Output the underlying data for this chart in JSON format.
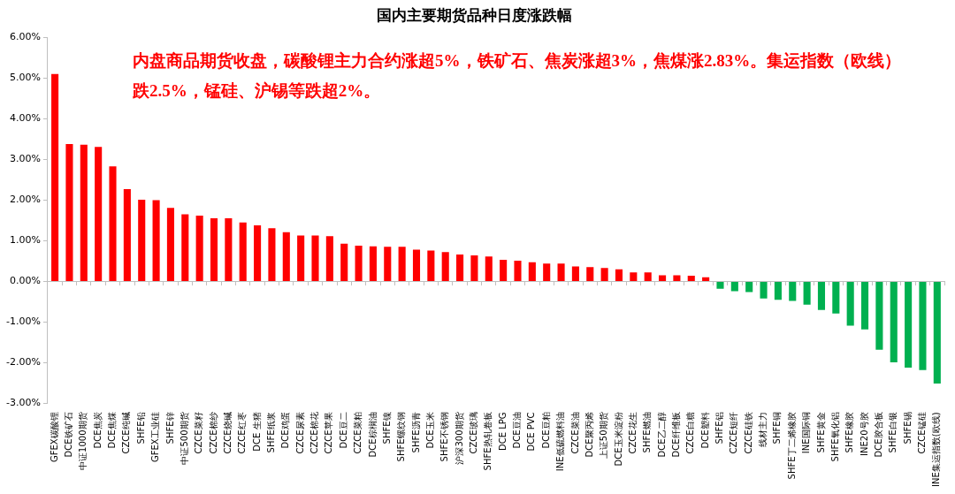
{
  "chart_data": {
    "type": "bar",
    "title": "国内主要期货品种日度涨跌幅",
    "annotations": [
      "内盘商品期货收盘，碳酸锂主力合约涨超5%，铁矿石、焦炭涨超3%，焦煤涨2.83%。集运指数（欧线）跌2.5%，锰硅、沪锡等跌超2%。"
    ],
    "categories": [
      "GFEX碳酸锂",
      "DCE铁矿石",
      "中证1000期货",
      "DCE焦炭",
      "DCE焦煤",
      "CZCE纯碱",
      "SHFE铅",
      "GFEX工业硅",
      "SHFE锌",
      "中证500期货",
      "CZCE菜籽",
      "CZCE棉纱",
      "CZCE烧碱",
      "CZCE红枣",
      "DCE 生猪",
      "SHFE纸浆",
      "DCE鸡蛋",
      "CZCE尿素",
      "CZCE棉花",
      "CZCE苹果",
      "DCE豆二",
      "CZCE菜粕",
      "DCE棕榈油",
      "SHFE镍",
      "SHFE螺纹钢",
      "SHFE沥青",
      "DCE玉米",
      "SHFE不锈钢",
      "沪深300期货",
      "CZCE玻璃",
      "SHFE热轧卷板",
      "DCE LPG",
      "DCE豆油",
      "DCE PVC",
      "DCE豆粕",
      "INE低硫燃料油",
      "CZCE菜油",
      "DCE聚丙烯",
      "上证50期货",
      "DCE玉米淀粉",
      "CZCE花生",
      "SHFE燃油",
      "DCE乙二醇",
      "DCE纤维板",
      "CZCE白糖",
      "DCE塑料",
      "SHFE铝",
      "CZCE短纤",
      "CZCE硅铁",
      "线材主力",
      "SHFE铜",
      "SHFE丁二烯橡胶",
      "INE国际铜",
      "SHFE黄金",
      "SHFE氧化铝",
      "SHFE橡胶",
      "INE20号胶",
      "DCE胶合板",
      "SHFE白银",
      "SHFE锡",
      "CZCE锰硅",
      "INE集运指数(欧线)"
    ],
    "values": [
      5.1,
      3.38,
      3.36,
      3.31,
      2.83,
      2.27,
      2.01,
      2.0,
      1.81,
      1.65,
      1.62,
      1.55,
      1.55,
      1.45,
      1.38,
      1.31,
      1.21,
      1.13,
      1.13,
      1.11,
      0.93,
      0.88,
      0.86,
      0.85,
      0.85,
      0.78,
      0.76,
      0.72,
      0.66,
      0.64,
      0.61,
      0.53,
      0.51,
      0.47,
      0.44,
      0.44,
      0.37,
      0.35,
      0.33,
      0.3,
      0.22,
      0.22,
      0.15,
      0.15,
      0.14,
      0.1,
      -0.18,
      -0.24,
      -0.26,
      -0.42,
      -0.45,
      -0.48,
      -0.57,
      -0.7,
      -0.79,
      -1.09,
      -1.18,
      -1.68,
      -1.99,
      -2.12,
      -2.18,
      -2.51
    ],
    "colors": [
      "#ff0000",
      "#ff0000",
      "#ff0000",
      "#ff0000",
      "#ff0000",
      "#ff0000",
      "#ff0000",
      "#ff0000",
      "#ff0000",
      "#ff0000",
      "#ff0000",
      "#ff0000",
      "#ff0000",
      "#ff0000",
      "#ff0000",
      "#ff0000",
      "#ff0000",
      "#ff0000",
      "#ff0000",
      "#ff0000",
      "#ff0000",
      "#ff0000",
      "#ff0000",
      "#ff0000",
      "#ff0000",
      "#ff0000",
      "#ff0000",
      "#ff0000",
      "#ff0000",
      "#ff0000",
      "#ff0000",
      "#ff0000",
      "#ff0000",
      "#ff0000",
      "#ff0000",
      "#ff0000",
      "#ff0000",
      "#ff0000",
      "#ff0000",
      "#ff0000",
      "#ff0000",
      "#ff0000",
      "#ff0000",
      "#ff0000",
      "#ff0000",
      "#ff0000",
      "#00b050",
      "#00b050",
      "#00b050",
      "#00b050",
      "#00b050",
      "#00b050",
      "#00b050",
      "#00b050",
      "#00b050",
      "#00b050",
      "#00b050",
      "#00b050",
      "#00b050",
      "#00b050",
      "#00b050",
      "#00b050"
    ],
    "ylim": [
      -3,
      6
    ],
    "yticks": [
      {
        "value": -3,
        "label": "-3.00%"
      },
      {
        "value": -2,
        "label": "-2.00%"
      },
      {
        "value": -1,
        "label": "-1.00%"
      },
      {
        "value": 0,
        "label": "0.00%"
      },
      {
        "value": 1,
        "label": "1.00%"
      },
      {
        "value": 2,
        "label": "2.00%"
      },
      {
        "value": 3,
        "label": "3.00%"
      },
      {
        "value": 4,
        "label": "4.00%"
      },
      {
        "value": 5,
        "label": "5.00%"
      },
      {
        "value": 6,
        "label": "6.00%"
      }
    ],
    "legend": false
  }
}
